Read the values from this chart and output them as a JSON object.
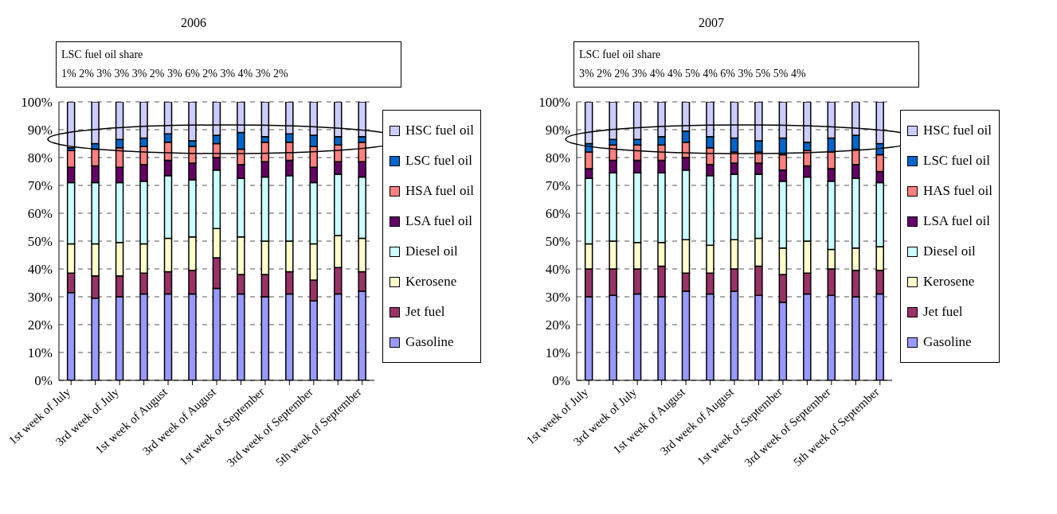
{
  "chart_data": [
    {
      "type": "bar",
      "stacked": true,
      "title": "2006",
      "grid": "y",
      "legend": "right",
      "annotations": [
        "LSC fuel oil share",
        "1% 2% 3% 3% 3% 2% 3% 6% 2% 3% 4% 3% 2%"
      ],
      "categories": [
        "1st week of July",
        null,
        "3rd week of July",
        null,
        "1st week of August",
        null,
        "3rd week of August",
        null,
        "1st week of September",
        null,
        "3rd week of September",
        null,
        "5th week of September"
      ],
      "ylim": [
        0,
        100
      ],
      "yticks": [
        {
          "value": 0,
          "label": "0%"
        },
        {
          "value": 10,
          "label": "10%"
        },
        {
          "value": 20,
          "label": "20%"
        },
        {
          "value": 30,
          "label": "30%"
        },
        {
          "value": 40,
          "label": "40%"
        },
        {
          "value": 50,
          "label": "50%"
        },
        {
          "value": 60,
          "label": "60%"
        },
        {
          "value": 70,
          "label": "70%"
        },
        {
          "value": 80,
          "label": "80%"
        },
        {
          "value": 90,
          "label": "90%"
        },
        {
          "value": 100,
          "label": "100%"
        }
      ],
      "series": [
        {
          "name": "Gasoline",
          "color": "#9999ff",
          "values": [
            31.5,
            29.5,
            30,
            31,
            31,
            31,
            33,
            31,
            30,
            31,
            28.5,
            31,
            32
          ]
        },
        {
          "name": "Jet fuel",
          "color": "#993366",
          "values": [
            7,
            8,
            7.5,
            7.5,
            8,
            8.5,
            11,
            7,
            8,
            8,
            7.5,
            9.5,
            7
          ]
        },
        {
          "name": "Kerosene",
          "color": "#ffffcc",
          "values": [
            10.5,
            11.5,
            12,
            10.5,
            12,
            12,
            10.5,
            13.5,
            12,
            11,
            13,
            11.5,
            12
          ]
        },
        {
          "name": "Diesel oil",
          "color": "#ccffff",
          "values": [
            22,
            22,
            21.5,
            22.5,
            22.5,
            20.5,
            21,
            21,
            23,
            23.5,
            22,
            22,
            22
          ]
        },
        {
          "name": "LSA fuel oil",
          "color": "#660066",
          "values": [
            5.5,
            6,
            5.5,
            6,
            5.5,
            6,
            4.5,
            5,
            5.5,
            5.5,
            5.5,
            4.5,
            5.5
          ]
        },
        {
          "name": "HSA fuel oil",
          "color": "#ff8080",
          "values": [
            6,
            6,
            7,
            6.5,
            6.5,
            6,
            5,
            5.5,
            7,
            6.5,
            7.5,
            6,
            7
          ]
        },
        {
          "name": "LSC fuel oil",
          "color": "#0066cc",
          "values": [
            1,
            2,
            3,
            3,
            3,
            2,
            3,
            6,
            2,
            3,
            4,
            3,
            2
          ]
        },
        {
          "name": "HSC fuel oil",
          "color": "#ccccff",
          "values": [
            16.5,
            15,
            13.5,
            13,
            11.5,
            14,
            12,
            11,
            12.5,
            11.5,
            12,
            12.5,
            12.5
          ]
        }
      ]
    },
    {
      "type": "bar",
      "stacked": true,
      "title": "2007",
      "grid": "y",
      "legend": "right",
      "annotations": [
        "LSC fuel oil share",
        "3% 2% 2% 3% 4% 4% 5% 4% 6% 3% 5% 5% 4%"
      ],
      "categories": [
        "1st week of July",
        null,
        "3rd week of July",
        null,
        "1st week of August",
        null,
        "3rd week of August",
        null,
        "1st week of September",
        null,
        "3rd week of September",
        null,
        "5th week of September"
      ],
      "ylim": [
        0,
        100
      ],
      "yticks": [
        {
          "value": 0,
          "label": "0%"
        },
        {
          "value": 10,
          "label": "10%"
        },
        {
          "value": 20,
          "label": "20%"
        },
        {
          "value": 30,
          "label": "30%"
        },
        {
          "value": 40,
          "label": "40%"
        },
        {
          "value": 50,
          "label": "50%"
        },
        {
          "value": 60,
          "label": "60%"
        },
        {
          "value": 70,
          "label": "70%"
        },
        {
          "value": 80,
          "label": "80%"
        },
        {
          "value": 90,
          "label": "90%"
        },
        {
          "value": 100,
          "label": "100%"
        }
      ],
      "series": [
        {
          "name": "Gasoline",
          "color": "#9999ff",
          "values": [
            30,
            30.5,
            31,
            30,
            32,
            31,
            32,
            30.5,
            28,
            31,
            30.5,
            30,
            31
          ]
        },
        {
          "name": "Jet fuel",
          "color": "#993366",
          "values": [
            10,
            9.5,
            9,
            11,
            6.5,
            7.5,
            8,
            10.5,
            10,
            7.5,
            9.5,
            9.5,
            8.5
          ]
        },
        {
          "name": "Kerosene",
          "color": "#ffffcc",
          "values": [
            9,
            10,
            9.5,
            8.5,
            12,
            10,
            10.5,
            10,
            9.5,
            11.5,
            7,
            8,
            8.5
          ]
        },
        {
          "name": "Diesel oil",
          "color": "#ccffff",
          "values": [
            23.5,
            24.5,
            25,
            25,
            25,
            25,
            23.5,
            23,
            24,
            23,
            24.5,
            25,
            23
          ]
        },
        {
          "name": "LSA fuel oil",
          "color": "#660066",
          "values": [
            3.5,
            4.5,
            4.5,
            4.5,
            4.5,
            4,
            4,
            4,
            4,
            4,
            4.5,
            5,
            4
          ]
        },
        {
          "name": "HAS fuel oil",
          "color": "#ff8080",
          "values": [
            6,
            5.5,
            5.5,
            5.5,
            5.5,
            6,
            4,
            4,
            5.5,
            5.5,
            6,
            5.5,
            6
          ]
        },
        {
          "name": "LSC fuel oil",
          "color": "#0066cc",
          "values": [
            3,
            2,
            2,
            3,
            4,
            4,
            5,
            4,
            6,
            3,
            5,
            5,
            4
          ]
        },
        {
          "name": "HSC fuel oil",
          "color": "#ccccff",
          "values": [
            15,
            13.5,
            13.5,
            12.5,
            10.5,
            12.5,
            13,
            14,
            13,
            14.5,
            13,
            12,
            15
          ]
        }
      ]
    }
  ]
}
